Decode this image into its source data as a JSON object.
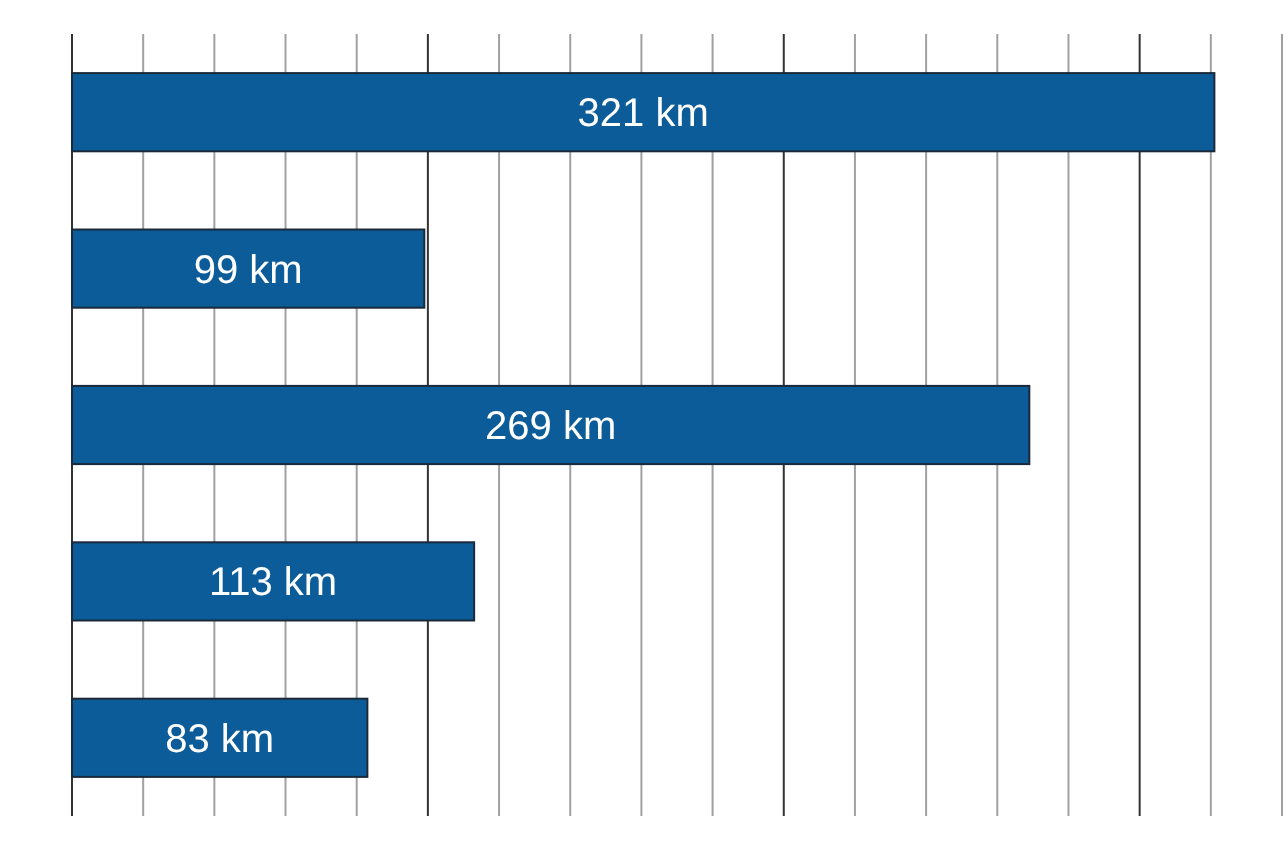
{
  "chart_data": {
    "type": "bar",
    "orientation": "horizontal",
    "categories": [
      null,
      null,
      null,
      null,
      null
    ],
    "values": [
      321,
      99,
      269,
      113,
      83
    ],
    "value_labels": [
      "321 km",
      "99 km",
      "269 km",
      "113 km",
      "83 km"
    ],
    "color": "#0b5c98",
    "xlim": [
      0,
      340
    ],
    "xticks": [
      {
        "value": 0,
        "label": null
      },
      {
        "value": 20,
        "label": null
      },
      {
        "value": 40,
        "label": null
      },
      {
        "value": 60,
        "label": null
      },
      {
        "value": 80,
        "label": null
      },
      {
        "value": 100,
        "label": null
      },
      {
        "value": 120,
        "label": null
      },
      {
        "value": 140,
        "label": null
      },
      {
        "value": 160,
        "label": null
      },
      {
        "value": 180,
        "label": null
      },
      {
        "value": 200,
        "label": null
      },
      {
        "value": 220,
        "label": null
      },
      {
        "value": 240,
        "label": null
      },
      {
        "value": 260,
        "label": null
      },
      {
        "value": 280,
        "label": null
      },
      {
        "value": 300,
        "label": null
      },
      {
        "value": 320,
        "label": null
      },
      {
        "value": 340,
        "label": null
      }
    ],
    "grid": "x"
  }
}
